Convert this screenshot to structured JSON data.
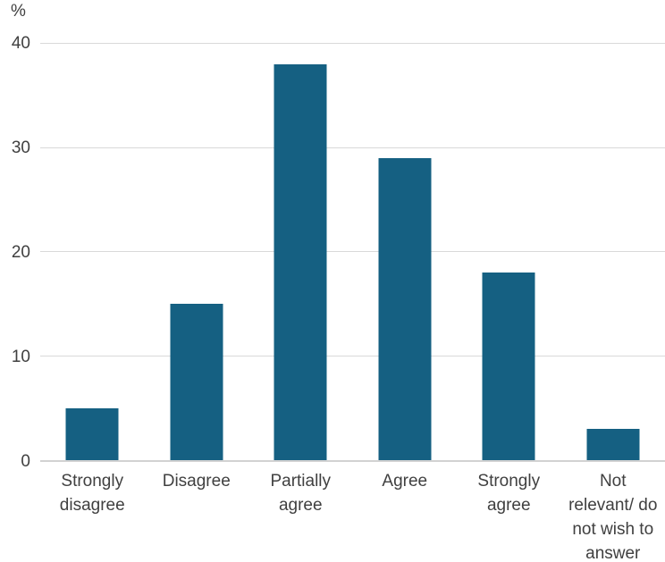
{
  "chart_data": {
    "type": "bar",
    "title": "",
    "xlabel": "",
    "ylabel": "%",
    "categories": [
      "Strongly disagree",
      "Disagree",
      "Partially agree",
      "Agree",
      "Strongly agree",
      "Not relevant/ do not wish to answer"
    ],
    "category_lines": [
      [
        "Strongly",
        "disagree"
      ],
      [
        "Disagree"
      ],
      [
        "Partially",
        "agree"
      ],
      [
        "Agree"
      ],
      [
        "Strongly",
        "agree"
      ],
      [
        "Not",
        "relevant/ do",
        "not wish to",
        "answer"
      ]
    ],
    "values": [
      5,
      15,
      38,
      29,
      18,
      3
    ],
    "ylim": [
      0,
      40
    ],
    "yticks": [
      0,
      10,
      20,
      30,
      40
    ],
    "grid": true,
    "legend": false,
    "colors": {
      "bar": "#156082",
      "gridline": "#d9d9d9",
      "axis_line": "#d2d2d2",
      "text": "#404040",
      "background": "#ffffff"
    }
  }
}
